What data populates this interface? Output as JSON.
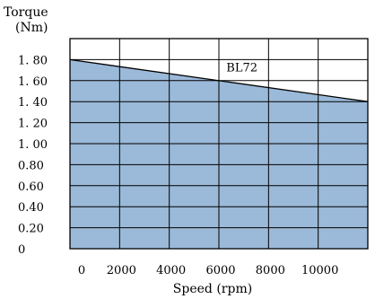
{
  "chart_data": {
    "type": "area",
    "title": "",
    "ylabel_line1": "Torque",
    "ylabel_line2": "(Nm)",
    "xlabel": "Speed  (rpm)",
    "xlim": [
      0,
      12000
    ],
    "ylim": [
      0,
      2.0
    ],
    "grid": true,
    "x_ticks": [
      {
        "value": 0,
        "label": "0"
      },
      {
        "value": 2000,
        "label": "2000"
      },
      {
        "value": 4000,
        "label": "4000"
      },
      {
        "value": 6000,
        "label": "6000"
      },
      {
        "value": 8000,
        "label": "8000"
      },
      {
        "value": 10000,
        "label": "10000"
      }
    ],
    "y_ticks": [
      {
        "value": 0,
        "label": "0"
      },
      {
        "value": 0.2,
        "label": "0.20"
      },
      {
        "value": 0.4,
        "label": "0.40"
      },
      {
        "value": 0.6,
        "label": "0.60"
      },
      {
        "value": 0.8,
        "label": "0.80"
      },
      {
        "value": 1.0,
        "label": "1. 00"
      },
      {
        "value": 1.2,
        "label": "1. 20"
      },
      {
        "value": 1.4,
        "label": "1. 40"
      },
      {
        "value": 1.6,
        "label": "1. 60"
      },
      {
        "value": 1.8,
        "label": "1. 80"
      }
    ],
    "series": [
      {
        "name": "BL72",
        "x": [
          0,
          12000
        ],
        "y": [
          1.8,
          1.4
        ]
      }
    ],
    "annotation": {
      "text": "BL72",
      "x": 6300,
      "y": 1.73
    },
    "colors": {
      "fill": "#9bb9d8",
      "line": "#000000",
      "grid": "#000000"
    }
  }
}
